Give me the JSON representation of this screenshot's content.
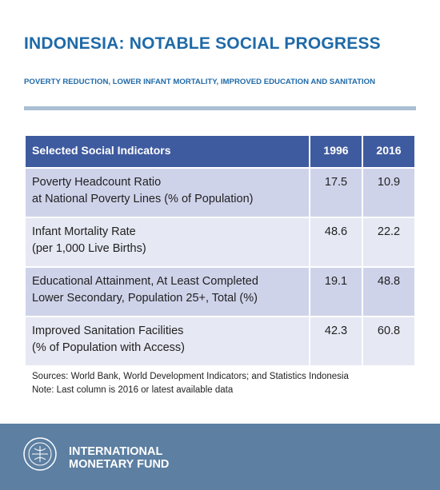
{
  "header": {
    "title": "INDONESIA: NOTABLE SOCIAL PROGRESS",
    "subtitle": "POVERTY REDUCTION, LOWER INFANT MORTALITY, IMPROVED EDUCATION AND SANITATION"
  },
  "table": {
    "columns": [
      "Selected Social Indicators",
      "1996",
      "2016"
    ],
    "rows": [
      {
        "label": [
          "Poverty Headcount Ratio",
          "at National Poverty Lines (% of Population)"
        ],
        "values": [
          17.5,
          10.9
        ]
      },
      {
        "label": [
          "Infant Mortality Rate",
          "(per 1,000 Live Births)"
        ],
        "values": [
          48.6,
          22.2
        ]
      },
      {
        "label": [
          "Educational Attainment, At Least Completed",
          "Lower Secondary, Population 25+, Total (%)"
        ],
        "values": [
          19.1,
          48.8
        ]
      },
      {
        "label": [
          "Improved Sanitation Facilities",
          "(% of Population with Access)"
        ],
        "values": [
          42.3,
          60.8
        ]
      }
    ]
  },
  "notes": [
    "Sources: World Bank, World Development Indicators; and Statistics Indonesia",
    "Note: Last column is 2016 or latest available data"
  ],
  "footer": {
    "org": [
      "INTERNATIONAL",
      "MONETARY FUND"
    ]
  }
}
